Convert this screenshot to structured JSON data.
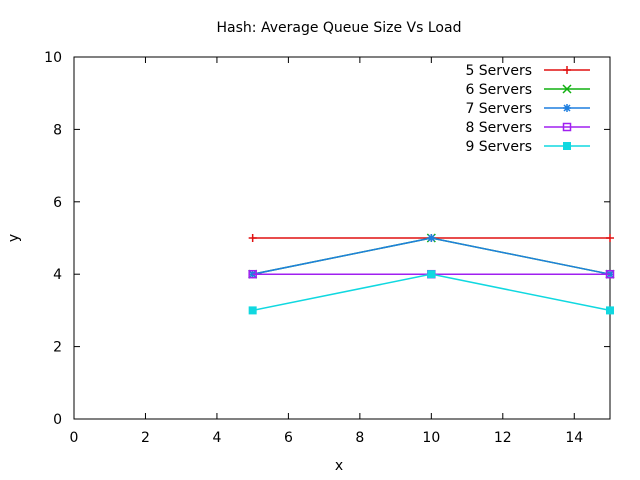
{
  "chart_data": {
    "type": "line",
    "title": "Hash: Average Queue Size Vs Load",
    "xlabel": "x",
    "ylabel": "y",
    "xlim": [
      0,
      15
    ],
    "ylim": [
      0,
      10
    ],
    "xticks": [
      "0",
      "2",
      "4",
      "6",
      "8",
      "10",
      "12",
      "14"
    ],
    "yticks": [
      "0",
      "2",
      "4",
      "6",
      "8",
      "10"
    ],
    "grid": false,
    "legend_position": "top-right",
    "x": [
      5,
      10,
      15
    ],
    "series": [
      {
        "name": "5 Servers",
        "values": [
          5,
          5,
          5
        ],
        "color": "#e01010",
        "marker": "plus"
      },
      {
        "name": "6 Servers",
        "values": [
          4,
          5,
          4
        ],
        "color": "#10b010",
        "marker": "cross"
      },
      {
        "name": "7 Servers",
        "values": [
          4,
          5,
          4
        ],
        "color": "#1f7fdf",
        "marker": "star"
      },
      {
        "name": "8 Servers",
        "values": [
          4,
          4,
          4
        ],
        "color": "#a020f0",
        "marker": "square-open"
      },
      {
        "name": "9 Servers",
        "values": [
          3,
          4,
          3
        ],
        "color": "#10d8e0",
        "marker": "square-filled"
      }
    ]
  }
}
